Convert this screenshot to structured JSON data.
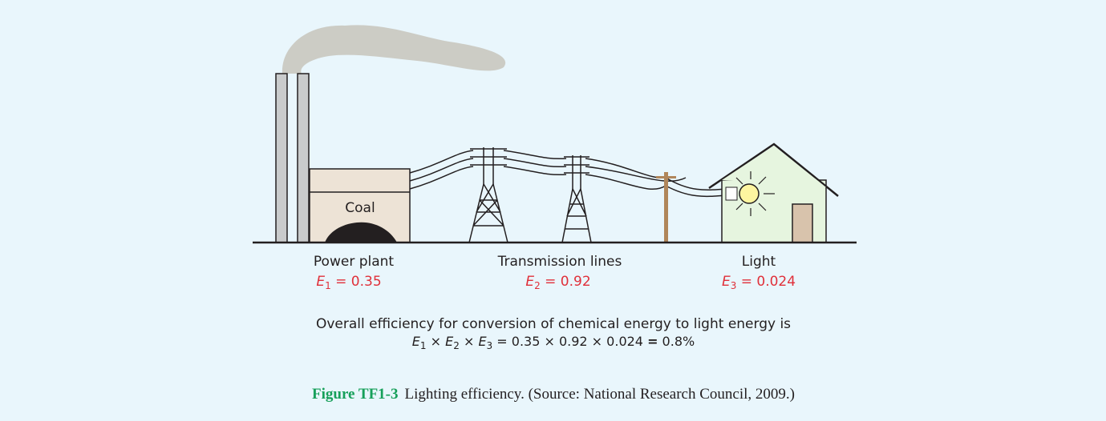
{
  "diagram": {
    "coal_label": "Coal",
    "stages": [
      {
        "label": "Power plant",
        "efficiency": [
          "E",
          "1",
          " = 0.35"
        ]
      },
      {
        "label": "Transmission lines",
        "efficiency": [
          "E",
          "2",
          " = 0.92"
        ]
      },
      {
        "label": "Light",
        "efficiency": [
          "E",
          "3",
          " = 0.024"
        ]
      }
    ],
    "overall_text": "Overall efficiency for conversion of chemical energy to light energy is",
    "formula": [
      "E",
      "1",
      " × ",
      "E",
      "2",
      " × ",
      "E",
      "3",
      " = 0.35 × 0.92 × 0.024 ",
      "=",
      " 0.8%"
    ]
  },
  "caption": {
    "label": "Figure TF1-3",
    "text": "Lighting efficiency. (Source: National Research Council, 2009.)"
  }
}
